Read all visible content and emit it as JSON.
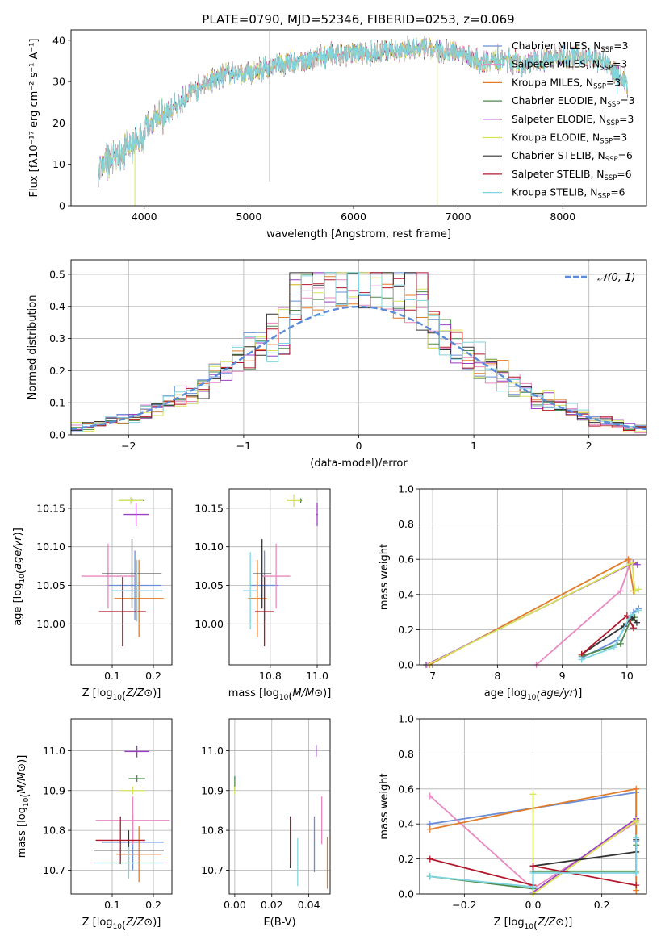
{
  "figure": {
    "title": "PLATE=0790, MJD=52346, FIBERID=0253, z=0.069",
    "colors": [
      "#6a8fd8",
      "#e887c0",
      "#e07c2a",
      "#4a8a4a",
      "#9b3fc6",
      "#d8e35a",
      "#333333",
      "#b2182b",
      "#7fd4e0"
    ],
    "diag_color": "#5b8ad8"
  },
  "chart_data": [
    {
      "id": "spectrum",
      "type": "line",
      "xlabel": "wavelength [Angstrom, rest frame]",
      "ylabel": "Flux [fλ10⁻¹⁷ erg cm⁻² s⁻¹ A⁻¹]",
      "xlim": [
        3300,
        8800
      ],
      "ylim": [
        0,
        42.5
      ],
      "xticks": [
        4000,
        5000,
        6000,
        7000,
        8000
      ],
      "yticks": [
        0,
        10,
        20,
        30,
        40
      ],
      "grid": false,
      "legend_position": "top-right",
      "continuum": [
        [
          3560,
          8
        ],
        [
          3650,
          11
        ],
        [
          3800,
          13
        ],
        [
          3920,
          15
        ],
        [
          4000,
          18
        ],
        [
          4100,
          21
        ],
        [
          4200,
          22.5
        ],
        [
          4300,
          23
        ],
        [
          4400,
          26.5
        ],
        [
          4600,
          30
        ],
        [
          4800,
          32
        ],
        [
          5000,
          32
        ],
        [
          5200,
          33.5
        ],
        [
          5400,
          34.5
        ],
        [
          5600,
          35
        ],
        [
          5800,
          36.5
        ],
        [
          6000,
          37
        ],
        [
          6200,
          37
        ],
        [
          6400,
          37.5
        ],
        [
          6600,
          38
        ],
        [
          6800,
          37.5
        ],
        [
          7000,
          37
        ],
        [
          7200,
          35
        ],
        [
          7400,
          35.5
        ],
        [
          7600,
          34
        ],
        [
          7800,
          35.5
        ],
        [
          8000,
          36
        ],
        [
          8200,
          36
        ],
        [
          8400,
          34.5
        ],
        [
          8600,
          30
        ],
        [
          8620,
          27
        ]
      ],
      "series": [
        {
          "name": "Chabrier MILES, N",
          "sub": "SSP",
          "tail": "=3"
        },
        {
          "name": "Salpeter MILES, N",
          "sub": "SSP",
          "tail": "=3"
        },
        {
          "name": "Kroupa MILES, N",
          "sub": "SSP",
          "tail": "=3"
        },
        {
          "name": "Chabrier ELODIE, N",
          "sub": "SSP",
          "tail": "=3"
        },
        {
          "name": "Salpeter ELODIE, N",
          "sub": "SSP",
          "tail": "=3"
        },
        {
          "name": "Kroupa ELODIE, N",
          "sub": "SSP",
          "tail": "=3"
        },
        {
          "name": "Chabrier STELIB, N",
          "sub": "SSP",
          "tail": "=6"
        },
        {
          "name": "Salpeter STELIB, N",
          "sub": "SSP",
          "tail": "=6"
        },
        {
          "name": "Kroupa STELIB, N",
          "sub": "SSP",
          "tail": "=6"
        }
      ]
    },
    {
      "id": "residuals",
      "type": "histogram",
      "xlabel": "(data-model)/error",
      "ylabel": "Normed distribution",
      "xlim": [
        -2.5,
        2.5
      ],
      "ylim": [
        0,
        0.545
      ],
      "xticks": [
        -2,
        -1,
        0,
        1,
        2
      ],
      "yticks": [
        0.0,
        0.1,
        0.2,
        0.3,
        0.4,
        0.5
      ],
      "grid": true,
      "legend_position": "top-right",
      "legend": "𝒩(0, 1)",
      "bin_width": 0.1
    },
    {
      "id": "age_vs_Z",
      "type": "errorbar",
      "xlabel": "Z [log10(Z/Z⊙)]",
      "ylabel": "age  [log10(age/yr)]",
      "xlim": [
        0.0,
        0.245
      ],
      "ylim": [
        9.947,
        10.175
      ],
      "xticks": [
        0.1,
        0.2
      ],
      "yticks": [
        10.0,
        10.05,
        10.1,
        10.15
      ],
      "grid": true,
      "points": [
        {
          "x": 0.155,
          "y": 10.05,
          "xerr": 0.065,
          "yerr": 0.045
        },
        {
          "x": 0.09,
          "y": 10.062,
          "xerr": 0.065,
          "yerr": 0.042
        },
        {
          "x": 0.165,
          "y": 10.033,
          "xerr": 0.06,
          "yerr": 0.05
        },
        {
          "x": 0.148,
          "y": 10.16,
          "xerr": 0.03,
          "yerr": 0.003
        },
        {
          "x": 0.158,
          "y": 10.142,
          "xerr": 0.03,
          "yerr": 0.015
        },
        {
          "x": 0.145,
          "y": 10.16,
          "xerr": 0.03,
          "yerr": 0.005
        },
        {
          "x": 0.148,
          "y": 10.065,
          "xerr": 0.072,
          "yerr": 0.045
        },
        {
          "x": 0.125,
          "y": 10.016,
          "xerr": 0.057,
          "yerr": 0.045
        },
        {
          "x": 0.16,
          "y": 10.043,
          "xerr": 0.062,
          "yerr": 0.04
        }
      ]
    },
    {
      "id": "age_vs_mass",
      "type": "errorbar",
      "xlabel": "mass [log10(M/M⊙)]",
      "ylabel": "",
      "xlim": [
        10.625,
        11.055
      ],
      "ylim": [
        9.947,
        10.175
      ],
      "xticks": [
        10.8,
        11.0
      ],
      "yticks": [
        10.0,
        10.05,
        10.1,
        10.15
      ],
      "grid": true,
      "points": [
        {
          "x": 10.775,
          "y": 10.05,
          "xerr": 0.06,
          "yerr": 0.045
        },
        {
          "x": 10.825,
          "y": 10.062,
          "xerr": 0.06,
          "yerr": 0.042
        },
        {
          "x": 10.745,
          "y": 10.033,
          "xerr": 0.04,
          "yerr": 0.05
        },
        {
          "x": 10.93,
          "y": 10.16,
          "xerr": 0.005,
          "yerr": 0.003
        },
        {
          "x": 11.0,
          "y": 10.142,
          "xerr": 0.003,
          "yerr": 0.015
        },
        {
          "x": 10.9,
          "y": 10.16,
          "xerr": 0.03,
          "yerr": 0.008
        },
        {
          "x": 10.765,
          "y": 10.065,
          "xerr": 0.04,
          "yerr": 0.045
        },
        {
          "x": 10.775,
          "y": 10.016,
          "xerr": 0.04,
          "yerr": 0.045
        },
        {
          "x": 10.715,
          "y": 10.043,
          "xerr": 0.03,
          "yerr": 0.05
        }
      ]
    },
    {
      "id": "weight_vs_age",
      "type": "line",
      "xlabel": "age  [log10(age/yr)]",
      "ylabel": "mass weight",
      "xlim": [
        6.8,
        10.3
      ],
      "ylim": [
        0,
        1.0
      ],
      "xticks": [
        7,
        8,
        9,
        10
      ],
      "yticks": [
        0.0,
        0.2,
        0.4,
        0.6,
        0.8,
        1.0
      ],
      "grid": true,
      "series": [
        {
          "points": [
            [
              9.3,
              0.04
            ],
            [
              9.85,
              0.14
            ],
            [
              10.1,
              0.3
            ],
            [
              10.18,
              0.32
            ]
          ]
        },
        {
          "points": [
            [
              8.6,
              0.0
            ],
            [
              9.9,
              0.42
            ],
            [
              10.05,
              0.58
            ]
          ]
        },
        {
          "points": [
            [
              6.95,
              0.0
            ],
            [
              10.02,
              0.6
            ],
            [
              10.1,
              0.42
            ]
          ]
        },
        {
          "points": [
            [
              9.3,
              0.05
            ],
            [
              9.9,
              0.12
            ],
            [
              10.05,
              0.25
            ],
            [
              10.12,
              0.27
            ]
          ]
        },
        {
          "points": [
            [
              6.9,
              0.0
            ],
            [
              10.1,
              0.58
            ],
            [
              10.16,
              0.57
            ]
          ]
        },
        {
          "points": [
            [
              6.92,
              0.0
            ],
            [
              10.08,
              0.58
            ],
            [
              10.12,
              0.42
            ],
            [
              10.18,
              0.43
            ]
          ]
        },
        {
          "points": [
            [
              9.3,
              0.06
            ],
            [
              9.95,
              0.22
            ],
            [
              10.08,
              0.27
            ],
            [
              10.15,
              0.24
            ]
          ]
        },
        {
          "points": [
            [
              9.3,
              0.06
            ],
            [
              10.0,
              0.28
            ],
            [
              10.1,
              0.21
            ]
          ]
        },
        {
          "points": [
            [
              9.3,
              0.03
            ],
            [
              9.8,
              0.1
            ],
            [
              10.05,
              0.28
            ],
            [
              10.18,
              0.31
            ]
          ]
        }
      ]
    },
    {
      "id": "mass_vs_Z",
      "type": "errorbar",
      "xlabel": "Z [log10(Z/Z⊙)]",
      "ylabel": "mass [log10(M/M⊙)]",
      "xlim": [
        0.0,
        0.245
      ],
      "ylim": [
        10.64,
        11.08
      ],
      "xticks": [
        0.1,
        0.2
      ],
      "yticks": [
        10.7,
        10.8,
        10.9,
        11.0
      ],
      "grid": true,
      "points": [
        {
          "x": 0.15,
          "y": 10.77,
          "xerr": 0.075,
          "yerr": 0.07
        },
        {
          "x": 0.15,
          "y": 10.825,
          "xerr": 0.09,
          "yerr": 0.06
        },
        {
          "x": 0.165,
          "y": 10.74,
          "xerr": 0.055,
          "yerr": 0.07
        },
        {
          "x": 0.16,
          "y": 10.93,
          "xerr": 0.02,
          "yerr": 0.008
        },
        {
          "x": 0.16,
          "y": 10.998,
          "xerr": 0.03,
          "yerr": 0.015
        },
        {
          "x": 0.15,
          "y": 10.9,
          "xerr": 0.03,
          "yerr": 0.01
        },
        {
          "x": 0.14,
          "y": 10.75,
          "xerr": 0.085,
          "yerr": 0.05
        },
        {
          "x": 0.12,
          "y": 10.775,
          "xerr": 0.06,
          "yerr": 0.06
        },
        {
          "x": 0.14,
          "y": 10.718,
          "xerr": 0.085,
          "yerr": 0.04
        }
      ]
    },
    {
      "id": "mass_vs_EBV",
      "type": "errorbar",
      "xlabel": "E(B-V)",
      "ylabel": "",
      "xlim": [
        -0.003,
        0.0515
      ],
      "ylim": [
        10.64,
        11.08
      ],
      "xticks": [
        0.0,
        0.02,
        0.04
      ],
      "yticks": [
        10.7,
        10.8,
        10.9,
        11.0
      ],
      "grid": true,
      "points": [
        {
          "x": 0.043,
          "y": 10.765,
          "xerr": 0.0,
          "yerr": 0.07
        },
        {
          "x": 0.047,
          "y": 10.825,
          "xerr": 0.0,
          "yerr": 0.06
        },
        {
          "x": 0.05,
          "y": 10.718,
          "xerr": 0.0,
          "yerr": 0.065
        },
        {
          "x": 0.0,
          "y": 10.918,
          "xerr": 0.0,
          "yerr": 0.018
        },
        {
          "x": 0.044,
          "y": 11.0,
          "xerr": 0.0,
          "yerr": 0.015
        },
        {
          "x": 0.0,
          "y": 10.9,
          "xerr": 0.0,
          "yerr": 0.01
        },
        {
          "x": 0.03,
          "y": 10.77,
          "xerr": 0.0,
          "yerr": 0.065
        },
        {
          "x": 0.03,
          "y": 10.775,
          "xerr": 0.0,
          "yerr": 0.06
        },
        {
          "x": 0.034,
          "y": 10.72,
          "xerr": 0.0,
          "yerr": 0.06
        }
      ]
    },
    {
      "id": "weight_vs_Z",
      "type": "line",
      "xlabel": "Z [log10(Z/Z⊙)]",
      "ylabel": "mass weight",
      "xlim": [
        -0.33,
        0.33
      ],
      "ylim": [
        0,
        1.0
      ],
      "xticks": [
        -0.2,
        0.0,
        0.2
      ],
      "yticks": [
        0.0,
        0.2,
        0.4,
        0.6,
        0.8,
        1.0
      ],
      "grid": true,
      "series": [
        {
          "points": [
            [
              -0.3,
              0.4
            ],
            [
              0.0,
              0.49
            ],
            [
              0.3,
              0.58
            ],
            [
              0.3,
              0.3
            ]
          ]
        },
        {
          "points": [
            [
              -0.3,
              0.56
            ],
            [
              0.0,
              0.03
            ],
            [
              0.3,
              0.41
            ],
            [
              0.3,
              0.42
            ]
          ]
        },
        {
          "points": [
            [
              -0.3,
              0.37
            ],
            [
              0.0,
              0.49
            ],
            [
              0.3,
              0.6
            ],
            [
              0.3,
              0.02
            ]
          ]
        },
        {
          "points": [
            [
              -0.3,
              0.1
            ],
            [
              0.0,
              0.03
            ],
            [
              0.0,
              0.13
            ],
            [
              0.3,
              0.13
            ],
            [
              0.3,
              0.28
            ]
          ]
        },
        {
          "points": [
            [
              0.0,
              0.01
            ],
            [
              0.3,
              0.43
            ],
            [
              0.3,
              0.42
            ]
          ]
        },
        {
          "points": [
            [
              0.0,
              0.57
            ],
            [
              0.0,
              0.0
            ],
            [
              0.3,
              0.42
            ],
            [
              0.3,
              0.41
            ]
          ]
        },
        {
          "points": [
            [
              0.0,
              0.16
            ],
            [
              0.3,
              0.24
            ],
            [
              0.3,
              0.31
            ]
          ]
        },
        {
          "points": [
            [
              -0.3,
              0.2
            ],
            [
              0.0,
              0.05
            ],
            [
              0.0,
              0.16
            ],
            [
              0.3,
              0.05
            ]
          ]
        },
        {
          "points": [
            [
              -0.3,
              0.1
            ],
            [
              0.0,
              0.04
            ],
            [
              0.0,
              0.12
            ],
            [
              0.3,
              0.12
            ],
            [
              0.3,
              0.32
            ]
          ]
        }
      ]
    }
  ]
}
